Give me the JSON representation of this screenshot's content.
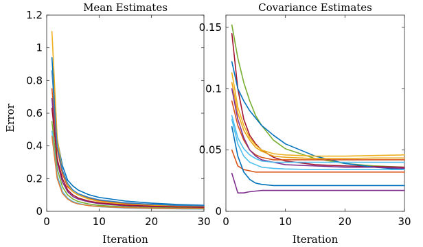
{
  "chart_data": [
    {
      "type": "line",
      "title": "Mean Estimates",
      "xlabel": "Iteration",
      "ylabel": "Error",
      "xlim": [
        0,
        30
      ],
      "ylim": [
        0,
        1.2
      ],
      "xticks": [
        0,
        10,
        20,
        30
      ],
      "xtick_labels": [
        "0",
        "10",
        "20",
        "30"
      ],
      "yticks": [
        0,
        0.2,
        0.4,
        0.6,
        0.8,
        1.0,
        1.2
      ],
      "ytick_labels": [
        "0",
        "0.2",
        "0.4",
        "0.6",
        "0.8",
        "1",
        "1.2"
      ],
      "grid": false,
      "legend": "none",
      "series": [
        {
          "color": "#0072BD",
          "x": [
            1,
            2,
            3,
            4,
            5,
            6,
            8,
            10,
            15,
            20,
            25,
            30
          ],
          "y": [
            0.94,
            0.44,
            0.28,
            0.19,
            0.155,
            0.13,
            0.102,
            0.085,
            0.063,
            0.05,
            0.042,
            0.037
          ]
        },
        {
          "color": "#D95319",
          "x": [
            1,
            2,
            3,
            4,
            5,
            6,
            8,
            10,
            15,
            20,
            25,
            30
          ],
          "y": [
            0.75,
            0.38,
            0.23,
            0.15,
            0.12,
            0.1,
            0.08,
            0.065,
            0.048,
            0.04,
            0.035,
            0.032
          ]
        },
        {
          "color": "#EDB120",
          "x": [
            1,
            2,
            3,
            4,
            5,
            6,
            8,
            10,
            15,
            20,
            25,
            30
          ],
          "y": [
            1.1,
            0.45,
            0.25,
            0.16,
            0.12,
            0.1,
            0.075,
            0.06,
            0.043,
            0.035,
            0.03,
            0.027
          ]
        },
        {
          "color": "#7E2F8E",
          "x": [
            1,
            2,
            3,
            4,
            5,
            6,
            8,
            10,
            15,
            20,
            25,
            30
          ],
          "y": [
            0.69,
            0.3,
            0.18,
            0.12,
            0.09,
            0.075,
            0.058,
            0.047,
            0.034,
            0.028,
            0.024,
            0.022
          ]
        },
        {
          "color": "#77AC30",
          "x": [
            1,
            2,
            3,
            4,
            5,
            6,
            8,
            10,
            15,
            20,
            25,
            30
          ],
          "y": [
            0.55,
            0.26,
            0.15,
            0.1,
            0.075,
            0.06,
            0.045,
            0.036,
            0.027,
            0.022,
            0.02,
            0.019
          ]
        },
        {
          "color": "#4DBEEE",
          "x": [
            1,
            2,
            3,
            4,
            5,
            6,
            8,
            10,
            15,
            20,
            25,
            30
          ],
          "y": [
            0.49,
            0.22,
            0.12,
            0.08,
            0.06,
            0.048,
            0.036,
            0.028,
            0.02,
            0.017,
            0.015,
            0.014
          ]
        },
        {
          "color": "#A2142F",
          "x": [
            1,
            2,
            3,
            4,
            5,
            6,
            8,
            10,
            15,
            20,
            25,
            30
          ],
          "y": [
            0.63,
            0.32,
            0.2,
            0.13,
            0.1,
            0.082,
            0.063,
            0.052,
            0.038,
            0.031,
            0.027,
            0.025
          ]
        },
        {
          "color": "#E07B39",
          "x": [
            1,
            2,
            3,
            4,
            5,
            6,
            8,
            10,
            15,
            20,
            25,
            30
          ],
          "y": [
            0.46,
            0.2,
            0.11,
            0.075,
            0.055,
            0.045,
            0.035,
            0.029,
            0.022,
            0.019,
            0.017,
            0.016
          ]
        },
        {
          "color": "#2F7FC1",
          "x": [
            1,
            2,
            3,
            4,
            5,
            6,
            8,
            10,
            15,
            20,
            25,
            30
          ],
          "y": [
            0.86,
            0.4,
            0.25,
            0.17,
            0.13,
            0.108,
            0.085,
            0.07,
            0.052,
            0.043,
            0.037,
            0.034
          ]
        }
      ]
    },
    {
      "type": "line",
      "title": "Covariance Estimates",
      "xlabel": "Iteration",
      "ylabel": "",
      "xlim": [
        0,
        30
      ],
      "ylim": [
        0,
        0.16
      ],
      "xticks": [
        0,
        10,
        20,
        30
      ],
      "xtick_labels": [
        "0",
        "10",
        "20",
        "30"
      ],
      "yticks": [
        0,
        0.05,
        0.1,
        0.15
      ],
      "ytick_labels": [
        "0",
        "0.05",
        "0.1",
        "0.15"
      ],
      "grid": false,
      "legend": "none",
      "series": [
        {
          "color": "#77AC30",
          "x": [
            1,
            2,
            3,
            4,
            5,
            6,
            8,
            10,
            15,
            20,
            25,
            30
          ],
          "y": [
            0.152,
            0.125,
            0.105,
            0.09,
            0.078,
            0.07,
            0.058,
            0.051,
            0.043,
            0.039,
            0.037,
            0.036
          ]
        },
        {
          "color": "#A2142F",
          "x": [
            1,
            2,
            3,
            4,
            5,
            6,
            8,
            10,
            15,
            20,
            25,
            30
          ],
          "y": [
            0.145,
            0.1,
            0.075,
            0.062,
            0.055,
            0.05,
            0.044,
            0.041,
            0.038,
            0.037,
            0.0365,
            0.036
          ]
        },
        {
          "color": "#0072BD",
          "x": [
            1,
            2,
            3,
            4,
            5,
            6,
            8,
            10,
            15,
            20,
            25,
            30
          ],
          "y": [
            0.122,
            0.1,
            0.09,
            0.082,
            0.076,
            0.07,
            0.062,
            0.055,
            0.045,
            0.039,
            0.036,
            0.034
          ]
        },
        {
          "color": "#EDB120",
          "x": [
            1,
            2,
            3,
            4,
            5,
            6,
            8,
            10,
            15,
            20,
            25,
            30
          ],
          "y": [
            0.113,
            0.085,
            0.07,
            0.06,
            0.054,
            0.05,
            0.047,
            0.046,
            0.045,
            0.045,
            0.0455,
            0.046
          ]
        },
        {
          "color": "#E8A317",
          "x": [
            1,
            2,
            3,
            4,
            5,
            6,
            8,
            10,
            15,
            20,
            25,
            30
          ],
          "y": [
            0.105,
            0.08,
            0.066,
            0.058,
            0.052,
            0.049,
            0.045,
            0.044,
            0.043,
            0.043,
            0.0435,
            0.0435
          ]
        },
        {
          "color": "#D95319",
          "x": [
            1,
            2,
            3,
            4,
            5,
            6,
            8,
            10,
            15,
            20,
            25,
            30
          ],
          "y": [
            0.09,
            0.07,
            0.058,
            0.05,
            0.046,
            0.044,
            0.042,
            0.042,
            0.042,
            0.042,
            0.042,
            0.042
          ]
        },
        {
          "color": "#7E2F8E",
          "x": [
            1,
            2,
            3,
            4,
            5,
            6,
            8,
            10,
            15,
            20,
            25,
            30
          ],
          "y": [
            0.1,
            0.075,
            0.06,
            0.05,
            0.045,
            0.042,
            0.04,
            0.038,
            0.037,
            0.036,
            0.036,
            0.035
          ]
        },
        {
          "color": "#4DBEEE",
          "x": [
            1,
            2,
            3,
            4,
            5,
            6,
            8,
            10,
            15,
            20,
            25,
            30
          ],
          "y": [
            0.078,
            0.06,
            0.051,
            0.046,
            0.043,
            0.041,
            0.04,
            0.04,
            0.04,
            0.04,
            0.04,
            0.04
          ]
        },
        {
          "color": "#4DBEEE",
          "x": [
            1,
            2,
            3,
            4,
            5,
            6,
            8,
            10,
            15,
            20,
            25,
            30
          ],
          "y": [
            0.075,
            0.055,
            0.045,
            0.04,
            0.038,
            0.036,
            0.035,
            0.0345,
            0.034,
            0.034,
            0.034,
            0.034
          ]
        },
        {
          "color": "#D95319",
          "x": [
            1,
            2,
            3,
            4,
            5,
            6,
            8,
            10,
            15,
            20,
            25,
            30
          ],
          "y": [
            0.05,
            0.037,
            0.034,
            0.033,
            0.032,
            0.032,
            0.032,
            0.032,
            0.032,
            0.032,
            0.032,
            0.032
          ]
        },
        {
          "color": "#0072BD",
          "x": [
            1,
            2,
            3,
            4,
            5,
            6,
            8,
            10,
            15,
            20,
            25,
            30
          ],
          "y": [
            0.069,
            0.045,
            0.032,
            0.026,
            0.023,
            0.022,
            0.021,
            0.021,
            0.021,
            0.021,
            0.021,
            0.021
          ]
        },
        {
          "color": "#7E2F8E",
          "x": [
            1,
            2,
            3,
            4,
            5,
            6,
            8,
            10,
            15,
            20,
            25,
            30
          ],
          "y": [
            0.031,
            0.015,
            0.015,
            0.016,
            0.0165,
            0.017,
            0.017,
            0.017,
            0.017,
            0.017,
            0.017,
            0.017
          ]
        }
      ]
    }
  ]
}
